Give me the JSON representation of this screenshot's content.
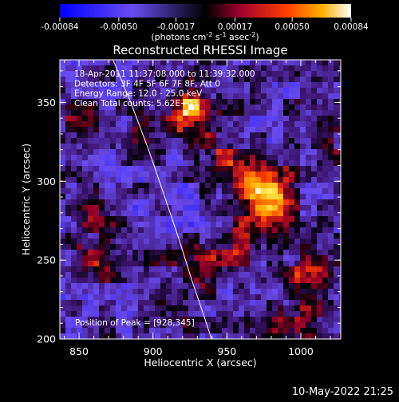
{
  "chart_data": {
    "type": "heatmap",
    "title": "Reconstructed RHESSI Image",
    "xlabel": "Heliocentric X (arcsec)",
    "ylabel": "Heliocentric Y (arcsec)",
    "xlim": [
      837,
      1027
    ],
    "ylim": [
      200,
      377
    ],
    "x_ticks": [
      "850",
      "900",
      "950",
      "1000"
    ],
    "y_ticks": [
      "200",
      "250",
      "300",
      "350"
    ],
    "colorbar": {
      "ticks": [
        "-0.00084",
        "-0.00050",
        "-0.00017",
        "0.00017",
        "0.00050",
        "0.00084"
      ],
      "range": [
        -0.00084,
        0.00084
      ],
      "unit_label_parts": [
        "(photons cm",
        "-2",
        " s",
        "-1",
        " asec",
        "-2",
        ")"
      ]
    },
    "annotations": [
      "18-Apr-2011 11:37:08.000 to 11:39:32.000",
      "Detectors: 3F 4F 5F 6F 7F 8F, Att 0",
      "Energy Range: 12.0 - 25.0 keV",
      "Clean     Total counts: 5.62E+03"
    ],
    "peak_label": "Position of Peak = [928,345]",
    "sources": [
      {
        "x": 925,
        "y": 345,
        "value": 0.00084
      },
      {
        "x": 968,
        "y": 300,
        "value": 0.00075
      },
      {
        "x": 980,
        "y": 282,
        "value": 0.00068
      },
      {
        "x": 1008,
        "y": 243,
        "value": 0.00062
      },
      {
        "x": 958,
        "y": 260,
        "value": 0.00045
      },
      {
        "x": 945,
        "y": 315,
        "value": 0.0004
      },
      {
        "x": 935,
        "y": 250,
        "value": 0.0003
      },
      {
        "x": 975,
        "y": 210,
        "value": 0.0003
      },
      {
        "x": 915,
        "y": 220,
        "value": 0.00035
      },
      {
        "x": 893,
        "y": 322,
        "value": 0.0003
      },
      {
        "x": 858,
        "y": 248,
        "value": 0.0004
      },
      {
        "x": 863,
        "y": 285,
        "value": 0.00032
      },
      {
        "x": 848,
        "y": 345,
        "value": 0.00025
      },
      {
        "x": 905,
        "y": 248,
        "value": 0.0002
      },
      {
        "x": 1020,
        "y": 325,
        "value": 0.00022
      },
      {
        "x": 990,
        "y": 300,
        "value": 0.00018
      },
      {
        "x": 1002,
        "y": 212,
        "value": 0.00035
      },
      {
        "x": 1015,
        "y": 360,
        "value": 0.0002
      }
    ]
  },
  "footer_date": "10-May-2022 21:25"
}
